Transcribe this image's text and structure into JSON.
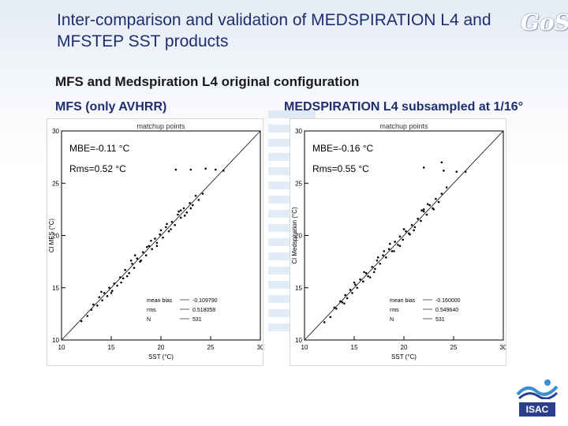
{
  "slide": {
    "title": "Inter-comparison and validation of MEDSPIRATION L4 and MFSTEP SST products",
    "section_heading": "MFS and Medspiration L4 original configuration",
    "logo_text": "GoS",
    "isac_text": "ISAC"
  },
  "panels": [
    {
      "label": "MFS (only AVHRR)",
      "mbe": "MBE=-0.11 °C",
      "rms": "Rms=0.52 °C"
    },
    {
      "label": "MEDSPIRATION L4 subsampled at 1/16°",
      "mbe": "MBE=-0.16 °C",
      "rms": "Rms=0.55 °C"
    }
  ],
  "chart_data": [
    {
      "type": "scatter",
      "title": "matchup points",
      "xlabel": "SST (°C)",
      "ylabel": "Cl MFS (°C)",
      "xlim": [
        10,
        30
      ],
      "ylim": [
        10,
        30
      ],
      "xticks": [
        10,
        15,
        20,
        25,
        30
      ],
      "yticks": [
        10,
        15,
        20,
        25,
        30
      ],
      "reference_line": "y = x",
      "stats": {
        "mean_bias": "-0.109790",
        "rms": "0.518058",
        "N": "531"
      },
      "stat_labels": {
        "mean_bias": "mean bias",
        "rms": "rms",
        "N": "N"
      },
      "points": [
        [
          12.6,
          12.3
        ],
        [
          13.0,
          12.9
        ],
        [
          13.2,
          13.4
        ],
        [
          13.6,
          13.3
        ],
        [
          13.8,
          14.1
        ],
        [
          14.1,
          13.8
        ],
        [
          14.3,
          14.5
        ],
        [
          14.6,
          14.2
        ],
        [
          14.8,
          15.0
        ],
        [
          15.1,
          14.7
        ],
        [
          15.3,
          15.4
        ],
        [
          15.6,
          15.2
        ],
        [
          15.9,
          16.0
        ],
        [
          16.2,
          15.9
        ],
        [
          16.4,
          16.7
        ],
        [
          16.8,
          16.4
        ],
        [
          17.1,
          17.3
        ],
        [
          17.3,
          16.9
        ],
        [
          17.6,
          17.8
        ],
        [
          17.9,
          17.5
        ],
        [
          18.2,
          18.4
        ],
        [
          18.5,
          18.1
        ],
        [
          18.8,
          19.0
        ],
        [
          19.1,
          18.7
        ],
        [
          19.4,
          19.7
        ],
        [
          19.6,
          19.3
        ],
        [
          19.9,
          20.1
        ],
        [
          20.2,
          19.8
        ],
        [
          20.5,
          20.8
        ],
        [
          20.8,
          20.4
        ],
        [
          21.1,
          21.3
        ],
        [
          21.4,
          21.0
        ],
        [
          21.7,
          22.0
        ],
        [
          22.0,
          21.7
        ],
        [
          22.3,
          22.6
        ],
        [
          22.6,
          22.2
        ],
        [
          22.9,
          23.1
        ],
        [
          23.2,
          22.9
        ],
        [
          23.5,
          23.8
        ],
        [
          23.8,
          23.4
        ],
        [
          16.0,
          15.5
        ],
        [
          17.0,
          17.6
        ],
        [
          18.0,
          17.6
        ],
        [
          19.0,
          19.5
        ],
        [
          20.0,
          20.5
        ],
        [
          21.0,
          20.6
        ],
        [
          22.0,
          22.4
        ],
        [
          23.0,
          22.6
        ],
        [
          14.0,
          14.6
        ],
        [
          15.0,
          14.5
        ],
        [
          16.6,
          16.1
        ],
        [
          18.6,
          18.9
        ],
        [
          20.6,
          21.1
        ],
        [
          22.4,
          21.9
        ],
        [
          12.0,
          11.8
        ],
        [
          24.2,
          24.0
        ],
        [
          21.5,
          26.3
        ],
        [
          23.0,
          26.3
        ],
        [
          24.5,
          26.4
        ],
        [
          25.5,
          26.3
        ],
        [
          26.3,
          26.2
        ],
        [
          19.6,
          19.0
        ],
        [
          21.8,
          22.3
        ],
        [
          17.4,
          18.1
        ]
      ]
    },
    {
      "type": "scatter",
      "title": "matchup points",
      "xlabel": "SST (°C)",
      "ylabel": "Cl Medspiration (°C)",
      "xlim": [
        10,
        30
      ],
      "ylim": [
        10,
        30
      ],
      "xticks": [
        10,
        15,
        20,
        25,
        30
      ],
      "yticks": [
        10,
        15,
        20,
        25,
        30
      ],
      "reference_line": "y = x",
      "stats": {
        "mean_bias": "-0.160000",
        "rms": "0.549640",
        "N": "531"
      },
      "stat_labels": {
        "mean_bias": "mean bias",
        "rms": "rms",
        "N": "N"
      },
      "points": [
        [
          12.6,
          12.2
        ],
        [
          13.0,
          13.1
        ],
        [
          13.2,
          13.0
        ],
        [
          13.6,
          13.7
        ],
        [
          13.8,
          13.6
        ],
        [
          14.1,
          14.3
        ],
        [
          14.3,
          14.0
        ],
        [
          14.6,
          14.8
        ],
        [
          14.8,
          14.5
        ],
        [
          15.1,
          15.3
        ],
        [
          15.3,
          15.0
        ],
        [
          15.6,
          15.8
        ],
        [
          15.9,
          15.6
        ],
        [
          16.2,
          16.4
        ],
        [
          16.4,
          16.1
        ],
        [
          16.8,
          17.0
        ],
        [
          17.1,
          16.8
        ],
        [
          17.3,
          17.6
        ],
        [
          17.6,
          17.3
        ],
        [
          17.9,
          18.1
        ],
        [
          18.2,
          17.9
        ],
        [
          18.5,
          18.7
        ],
        [
          18.8,
          18.5
        ],
        [
          19.1,
          19.4
        ],
        [
          19.4,
          19.1
        ],
        [
          19.6,
          19.9
        ],
        [
          19.9,
          19.6
        ],
        [
          20.2,
          20.4
        ],
        [
          20.5,
          20.2
        ],
        [
          20.8,
          21.0
        ],
        [
          21.1,
          20.8
        ],
        [
          21.4,
          21.6
        ],
        [
          21.7,
          21.4
        ],
        [
          22.0,
          22.3
        ],
        [
          22.3,
          22.0
        ],
        [
          22.6,
          22.9
        ],
        [
          22.9,
          22.6
        ],
        [
          23.2,
          23.5
        ],
        [
          23.5,
          23.2
        ],
        [
          23.8,
          24.0
        ],
        [
          16.0,
          16.5
        ],
        [
          17.0,
          16.5
        ],
        [
          18.0,
          18.5
        ],
        [
          19.0,
          18.5
        ],
        [
          20.0,
          20.6
        ],
        [
          21.0,
          20.5
        ],
        [
          22.0,
          22.5
        ],
        [
          23.0,
          22.5
        ],
        [
          14.0,
          13.5
        ],
        [
          15.0,
          15.5
        ],
        [
          16.6,
          16.0
        ],
        [
          18.6,
          19.2
        ],
        [
          20.6,
          20.1
        ],
        [
          22.4,
          23.0
        ],
        [
          12.0,
          11.7
        ],
        [
          24.3,
          24.6
        ],
        [
          22.0,
          26.5
        ],
        [
          24.0,
          26.2
        ],
        [
          25.3,
          26.1
        ],
        [
          26.2,
          26.1
        ],
        [
          23.8,
          27.0
        ],
        [
          19.6,
          19.0
        ],
        [
          21.8,
          22.4
        ],
        [
          17.4,
          17.9
        ]
      ]
    }
  ]
}
